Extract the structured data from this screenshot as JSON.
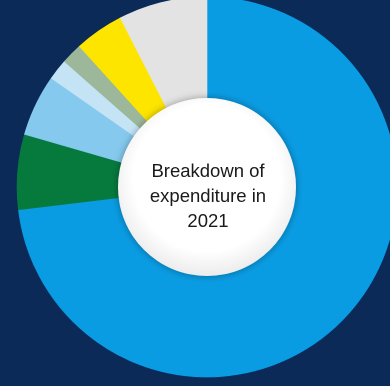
{
  "page": {
    "background": "#0b2a58"
  },
  "chart_data": {
    "type": "pie",
    "variant": "donut",
    "title": "Breakdown of expenditure in 2021",
    "center_label_lines": [
      "Breakdown of",
      "expenditure in",
      "2021"
    ],
    "start_angle_deg": 0,
    "direction": "clockwise",
    "slices": [
      {
        "color": "#0a9ce3",
        "value": 69.8
      },
      {
        "color": "#067a3d",
        "value": 6.1
      },
      {
        "color": "#85c9ee",
        "value": 5.0
      },
      {
        "color": "#c4e4f6",
        "value": 1.7
      },
      {
        "color": "#9db79a",
        "value": 1.7
      },
      {
        "color": "#fde500",
        "value": 4.0
      },
      {
        "color": "#e3e3e3",
        "value": 7.2
      }
    ]
  }
}
